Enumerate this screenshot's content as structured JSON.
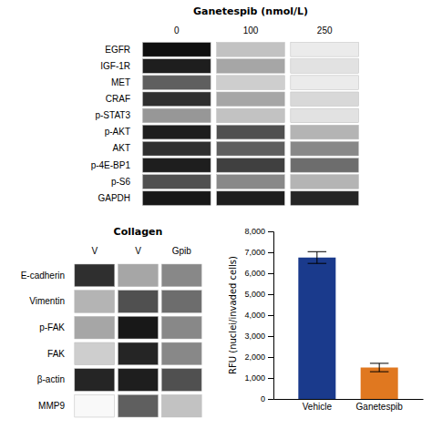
{
  "chart_data": [
    {
      "type": "heatmap",
      "title": "Ganetespib (nmol/L)",
      "x": [
        "0",
        "100",
        "250"
      ],
      "y": [
        "EGFR",
        "IGF-1R",
        "MET",
        "CRAF",
        "p-STAT3",
        "p-AKT",
        "AKT",
        "p-4E-BP1",
        "p-S6",
        "GAPDH"
      ],
      "cells": [
        [
          0.95,
          0.35,
          0.15
        ],
        [
          0.9,
          0.45,
          0.2
        ],
        [
          0.7,
          0.3,
          0.15
        ],
        [
          0.85,
          0.45,
          0.25
        ],
        [
          0.5,
          0.35,
          0.2
        ],
        [
          0.9,
          0.75,
          0.4
        ],
        [
          0.85,
          0.7,
          0.55
        ],
        [
          0.9,
          0.8,
          0.65
        ],
        [
          0.75,
          0.55,
          0.4
        ],
        [
          0.92,
          0.9,
          0.88
        ]
      ]
    },
    {
      "type": "heatmap",
      "title": "Collagen",
      "x": [
        "V",
        "V",
        "Gpib"
      ],
      "y": [
        "E-cadherin",
        "Vimentin",
        "p-FAK",
        "FAK",
        "β-actin",
        "MMP9"
      ],
      "cells": [
        [
          0.85,
          0.45,
          0.55
        ],
        [
          0.4,
          0.75,
          0.65
        ],
        [
          0.45,
          0.92,
          0.55
        ],
        [
          0.3,
          0.88,
          0.55
        ],
        [
          0.88,
          0.9,
          0.75
        ],
        [
          0.05,
          0.7,
          0.35
        ]
      ]
    },
    {
      "type": "bar",
      "categories": [
        "Vehicle",
        "Ganetespib"
      ],
      "values": [
        6750,
        1500
      ],
      "errors": [
        280,
        200
      ],
      "colors": [
        "#1a3a8c",
        "#e07820"
      ],
      "ylabel": "RFU (nuclei/invaded cells)",
      "ylim": [
        0,
        8000
      ],
      "yticks": [
        0,
        {
          "value": 1000,
          "label": "1,000"
        },
        {
          "value": 2000,
          "label": "2,000"
        },
        {
          "value": 3000,
          "label": "3,000"
        },
        {
          "value": 4000,
          "label": "4,000"
        },
        {
          "value": 5000,
          "label": "5,000"
        },
        {
          "value": 6000,
          "label": "6,000"
        },
        {
          "value": 7000,
          "label": "7,000"
        },
        {
          "value": 8000,
          "label": "8,000"
        }
      ],
      "grid": false
    }
  ]
}
